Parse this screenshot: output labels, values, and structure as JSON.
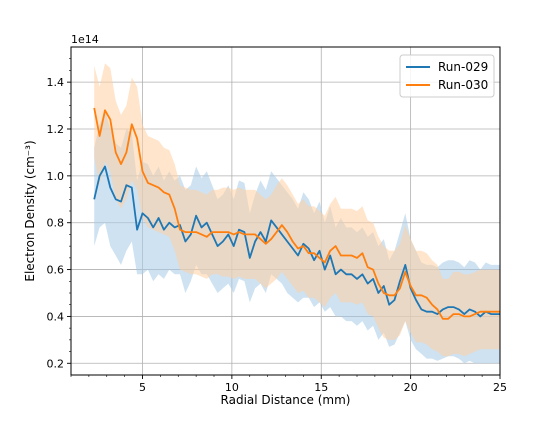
{
  "chart_data": {
    "type": "line",
    "title": "",
    "xlabel": "Radial Distance (mm)",
    "ylabel": "Electron Density (cm⁻³)",
    "offset_label": "1e14",
    "xlim": [
      1.0,
      25.0
    ],
    "ylim": [
      0.15,
      1.55
    ],
    "x_ticks": [
      5,
      10,
      15,
      20,
      25
    ],
    "x_tick_labels": [
      "5",
      "10",
      "15",
      "20",
      "25"
    ],
    "y_ticks": [
      0.2,
      0.4,
      0.6,
      0.8,
      1.0,
      1.2,
      1.4
    ],
    "y_tick_labels": [
      "0.2",
      "0.4",
      "0.6",
      "0.8",
      "1.0",
      "1.2",
      "1.4"
    ],
    "grid": true,
    "legend_position": "upper right",
    "x": [
      2.3,
      2.6,
      2.9,
      3.2,
      3.5,
      3.8,
      4.1,
      4.4,
      4.7,
      5.0,
      5.3,
      5.6,
      5.9,
      6.2,
      6.5,
      6.8,
      7.1,
      7.4,
      7.7,
      8.0,
      8.3,
      8.6,
      8.9,
      9.2,
      9.5,
      9.8,
      10.1,
      10.4,
      10.7,
      11.0,
      11.3,
      11.6,
      11.9,
      12.2,
      12.5,
      12.8,
      13.1,
      13.4,
      13.7,
      14.0,
      14.3,
      14.6,
      14.9,
      15.2,
      15.5,
      15.8,
      16.1,
      16.4,
      16.7,
      17.0,
      17.3,
      17.6,
      17.9,
      18.2,
      18.5,
      18.8,
      19.1,
      19.4,
      19.7,
      20.0,
      20.3,
      20.6,
      20.9,
      21.2,
      21.5,
      21.8,
      22.1,
      22.4,
      22.7,
      23.0,
      23.3,
      23.6,
      23.9,
      24.2,
      24.5,
      24.8,
      25.0
    ],
    "series": [
      {
        "name": "Run-029",
        "color": "#1f77b4",
        "band_color": "#a6cbe8",
        "values": [
          0.9,
          1.0,
          1.04,
          0.95,
          0.9,
          0.89,
          0.96,
          0.95,
          0.77,
          0.84,
          0.82,
          0.78,
          0.82,
          0.77,
          0.8,
          0.78,
          0.79,
          0.72,
          0.75,
          0.83,
          0.78,
          0.8,
          0.75,
          0.7,
          0.72,
          0.75,
          0.7,
          0.77,
          0.76,
          0.65,
          0.72,
          0.76,
          0.72,
          0.81,
          0.78,
          0.75,
          0.72,
          0.69,
          0.66,
          0.71,
          0.69,
          0.64,
          0.68,
          0.6,
          0.66,
          0.58,
          0.6,
          0.58,
          0.58,
          0.56,
          0.58,
          0.54,
          0.56,
          0.5,
          0.53,
          0.45,
          0.47,
          0.55,
          0.62,
          0.52,
          0.47,
          0.43,
          0.42,
          0.42,
          0.41,
          0.43,
          0.44,
          0.44,
          0.43,
          0.41,
          0.43,
          0.42,
          0.4,
          0.42,
          0.41,
          0.41,
          0.41
        ],
        "lower": [
          0.7,
          0.78,
          0.8,
          0.7,
          0.66,
          0.62,
          0.68,
          0.72,
          0.58,
          0.58,
          0.6,
          0.55,
          0.58,
          0.56,
          0.6,
          0.58,
          0.58,
          0.5,
          0.55,
          0.62,
          0.58,
          0.58,
          0.54,
          0.5,
          0.52,
          0.54,
          0.5,
          0.56,
          0.55,
          0.46,
          0.52,
          0.54,
          0.5,
          0.58,
          0.56,
          0.54,
          0.5,
          0.48,
          0.46,
          0.48,
          0.48,
          0.44,
          0.46,
          0.42,
          0.44,
          0.4,
          0.4,
          0.38,
          0.38,
          0.36,
          0.38,
          0.34,
          0.36,
          0.3,
          0.33,
          0.27,
          0.28,
          0.33,
          0.38,
          0.3,
          0.26,
          0.24,
          0.22,
          0.22,
          0.21,
          0.22,
          0.23,
          0.23,
          0.22,
          0.2,
          0.21,
          0.2,
          0.2,
          0.2,
          0.2,
          0.2,
          0.2
        ],
        "upper": [
          1.12,
          1.22,
          1.28,
          1.2,
          1.14,
          1.12,
          1.2,
          1.18,
          0.98,
          1.06,
          1.05,
          1.0,
          1.04,
          0.98,
          1.02,
          0.98,
          1.0,
          0.94,
          0.96,
          1.04,
          0.99,
          1.02,
          0.96,
          0.9,
          0.92,
          0.96,
          0.9,
          0.98,
          0.97,
          0.84,
          0.92,
          0.98,
          0.94,
          1.02,
          0.99,
          0.96,
          0.93,
          0.9,
          0.86,
          0.93,
          0.9,
          0.84,
          0.89,
          0.8,
          0.87,
          0.78,
          0.82,
          0.78,
          0.78,
          0.76,
          0.78,
          0.74,
          0.76,
          0.7,
          0.73,
          0.64,
          0.68,
          0.76,
          0.84,
          0.73,
          0.68,
          0.63,
          0.62,
          0.62,
          0.61,
          0.63,
          0.64,
          0.64,
          0.63,
          0.61,
          0.64,
          0.63,
          0.6,
          0.63,
          0.62,
          0.62,
          0.62
        ]
      },
      {
        "name": "Run-030",
        "color": "#ff7f0e",
        "band_color": "#ffcfa3",
        "values": [
          1.29,
          1.17,
          1.28,
          1.24,
          1.1,
          1.05,
          1.1,
          1.22,
          1.16,
          1.02,
          0.97,
          0.96,
          0.95,
          0.93,
          0.92,
          0.86,
          0.77,
          0.76,
          0.76,
          0.76,
          0.75,
          0.74,
          0.76,
          0.76,
          0.76,
          0.76,
          0.75,
          0.76,
          0.75,
          0.75,
          0.75,
          0.73,
          0.71,
          0.73,
          0.76,
          0.79,
          0.76,
          0.72,
          0.69,
          0.7,
          0.67,
          0.67,
          0.65,
          0.63,
          0.68,
          0.7,
          0.66,
          0.66,
          0.66,
          0.65,
          0.67,
          0.61,
          0.6,
          0.54,
          0.5,
          0.49,
          0.49,
          0.52,
          0.59,
          0.53,
          0.49,
          0.49,
          0.48,
          0.45,
          0.43,
          0.39,
          0.39,
          0.41,
          0.41,
          0.4,
          0.4,
          0.41,
          0.42,
          0.42,
          0.42,
          0.42,
          0.42
        ],
        "lower": [
          1.08,
          0.96,
          1.06,
          1.02,
          0.9,
          0.86,
          0.9,
          0.98,
          0.94,
          0.82,
          0.78,
          0.77,
          0.76,
          0.75,
          0.74,
          0.68,
          0.6,
          0.59,
          0.58,
          0.58,
          0.57,
          0.56,
          0.58,
          0.58,
          0.57,
          0.57,
          0.56,
          0.57,
          0.56,
          0.56,
          0.56,
          0.54,
          0.52,
          0.54,
          0.56,
          0.59,
          0.56,
          0.53,
          0.5,
          0.51,
          0.48,
          0.48,
          0.46,
          0.44,
          0.48,
          0.5,
          0.46,
          0.46,
          0.46,
          0.45,
          0.46,
          0.41,
          0.4,
          0.35,
          0.31,
          0.3,
          0.3,
          0.32,
          0.38,
          0.33,
          0.29,
          0.29,
          0.28,
          0.26,
          0.25,
          0.23,
          0.23,
          0.24,
          0.24,
          0.23,
          0.24,
          0.25,
          0.26,
          0.26,
          0.26,
          0.26,
          0.26
        ],
        "upper": [
          1.47,
          1.38,
          1.48,
          1.46,
          1.32,
          1.26,
          1.3,
          1.42,
          1.38,
          1.22,
          1.17,
          1.16,
          1.15,
          1.12,
          1.11,
          1.05,
          0.96,
          0.95,
          0.94,
          0.94,
          0.93,
          0.92,
          0.94,
          0.94,
          0.95,
          0.95,
          0.94,
          0.95,
          0.94,
          0.94,
          0.94,
          0.92,
          0.9,
          0.92,
          0.96,
          0.99,
          0.96,
          0.92,
          0.88,
          0.9,
          0.87,
          0.87,
          0.85,
          0.83,
          0.88,
          0.91,
          0.86,
          0.86,
          0.86,
          0.85,
          0.87,
          0.81,
          0.8,
          0.74,
          0.7,
          0.68,
          0.68,
          0.71,
          0.79,
          0.73,
          0.68,
          0.68,
          0.67,
          0.64,
          0.62,
          0.56,
          0.56,
          0.59,
          0.59,
          0.58,
          0.58,
          0.59,
          0.6,
          0.6,
          0.6,
          0.6,
          0.6
        ]
      }
    ]
  }
}
